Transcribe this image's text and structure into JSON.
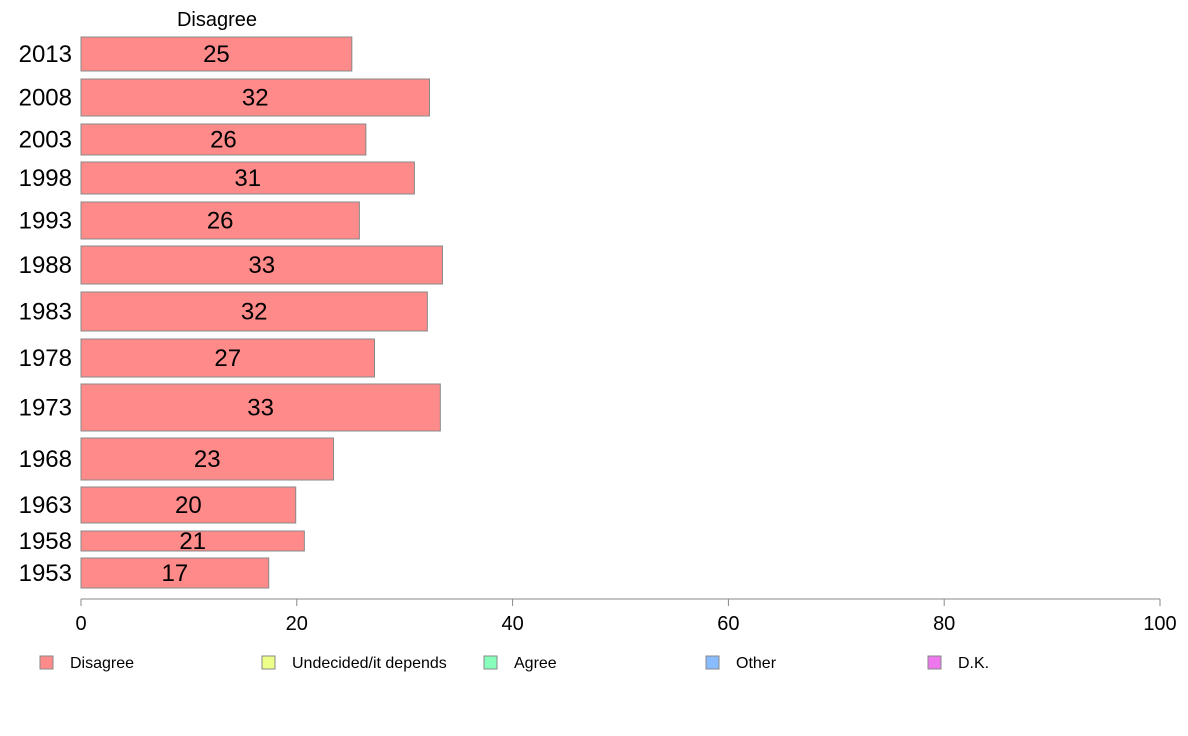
{
  "chart_data": {
    "type": "bar",
    "orientation": "horizontal",
    "series_title": "Disagree",
    "categories": [
      "2013",
      "2008",
      "2003",
      "1998",
      "1993",
      "1988",
      "1983",
      "1978",
      "1973",
      "1968",
      "1963",
      "1958",
      "1953"
    ],
    "values": [
      25,
      32,
      26,
      31,
      26,
      33,
      32,
      27,
      33,
      23,
      20,
      21,
      17
    ],
    "bar_ends": [
      25.1,
      32.3,
      26.4,
      30.9,
      25.8,
      33.5,
      32.1,
      27.2,
      33.3,
      23.4,
      19.9,
      20.7,
      17.4
    ],
    "xlim": [
      0,
      100
    ],
    "x_ticks": [
      "0",
      "20",
      "40",
      "60",
      "80",
      "100"
    ],
    "grid": false,
    "legend_position": "bottom",
    "legend": [
      {
        "label": "Disagree",
        "color": "#ff8a8a"
      },
      {
        "label": "Undecided/it depends",
        "color": "#eeff88"
      },
      {
        "label": "Agree",
        "color": "#88ffbb"
      },
      {
        "label": "Other",
        "color": "#88bbff"
      },
      {
        "label": "D.K.",
        "color": "#ee77ee"
      }
    ],
    "bar_color": "#ff8a8a",
    "bar_stroke": "#888888"
  }
}
